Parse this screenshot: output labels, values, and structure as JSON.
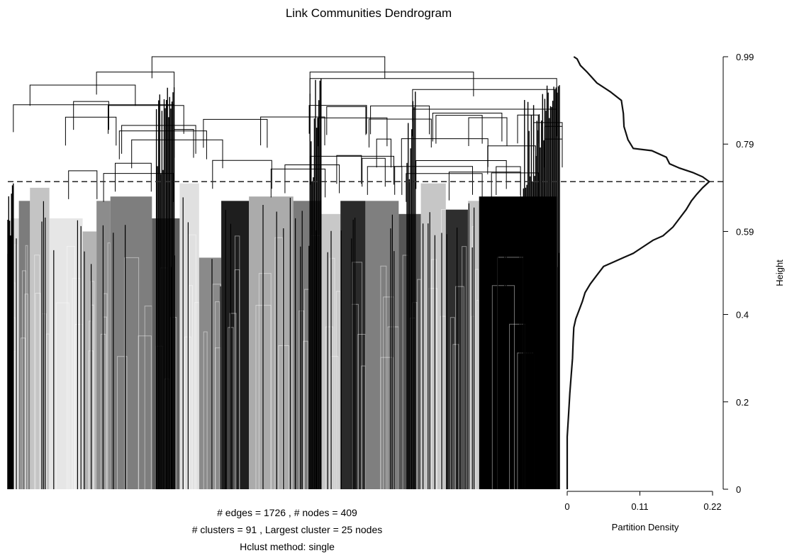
{
  "chart_data": [
    {
      "type": "dendrogram",
      "title": "Link Communities Dendrogram",
      "ylim": [
        0,
        0.99
      ],
      "cut_height": 0.704,
      "summary": {
        "line1": "# edges =  1726 ,    # nodes =  409",
        "line2": "# clusters =  91 ,   Largest cluster =  25  nodes",
        "line3": "Hclust method:  single"
      },
      "main_merges": [
        {
          "height": 0.99,
          "from": 0.26,
          "to": 0.68
        },
        {
          "height": 0.955,
          "from": 0.16,
          "to": 0.3
        },
        {
          "height": 0.955,
          "from": 0.545,
          "to": 0.84
        },
        {
          "height": 0.925,
          "from": 0.04,
          "to": 0.23
        },
        {
          "height": 0.94,
          "from": 0.545,
          "to": 0.99
        },
        {
          "height": 0.915,
          "from": 0.73,
          "to": 0.99
        },
        {
          "height": 0.88,
          "from": 0.01,
          "to": 0.3
        },
        {
          "height": 0.87,
          "from": 0.73,
          "to": 0.99
        }
      ],
      "cluster_blocks": [
        {
          "from": 0.005,
          "to": 0.02,
          "top": 0.62,
          "gray": "#dcdcdc"
        },
        {
          "from": 0.02,
          "to": 0.04,
          "top": 0.66,
          "gray": "#7c7c7c"
        },
        {
          "from": 0.04,
          "to": 0.075,
          "top": 0.69,
          "gray": "#c4c4c4"
        },
        {
          "from": 0.075,
          "to": 0.135,
          "top": 0.62,
          "gray": "#e6e6e6"
        },
        {
          "from": 0.135,
          "to": 0.16,
          "top": 0.59,
          "gray": "#b4b4b4"
        },
        {
          "from": 0.16,
          "to": 0.185,
          "top": 0.66,
          "gray": "#8c8c8c"
        },
        {
          "from": 0.185,
          "to": 0.26,
          "top": 0.67,
          "gray": "#7e7e7e"
        },
        {
          "from": 0.26,
          "to": 0.31,
          "top": 0.62,
          "gray": "#5e5e5e"
        },
        {
          "from": 0.31,
          "to": 0.345,
          "top": 0.7,
          "gray": "#e0e0e0"
        },
        {
          "from": 0.345,
          "to": 0.385,
          "top": 0.53,
          "gray": "#8a8a8a"
        },
        {
          "from": 0.385,
          "to": 0.435,
          "top": 0.66,
          "gray": "#1e1e1e"
        },
        {
          "from": 0.435,
          "to": 0.515,
          "top": 0.67,
          "gray": "#ababab"
        },
        {
          "from": 0.515,
          "to": 0.565,
          "top": 0.66,
          "gray": "#7a7a7a"
        },
        {
          "from": 0.565,
          "to": 0.6,
          "top": 0.63,
          "gray": "#c8c8c8"
        },
        {
          "from": 0.6,
          "to": 0.645,
          "top": 0.66,
          "gray": "#2a2a2a"
        },
        {
          "from": 0.645,
          "to": 0.705,
          "top": 0.66,
          "gray": "#7f7f7f"
        },
        {
          "from": 0.705,
          "to": 0.745,
          "top": 0.63,
          "gray": "#555555"
        },
        {
          "from": 0.745,
          "to": 0.79,
          "top": 0.7,
          "gray": "#c6c6c6"
        },
        {
          "from": 0.79,
          "to": 0.83,
          "top": 0.64,
          "gray": "#2e2e2e"
        },
        {
          "from": 0.83,
          "to": 0.85,
          "top": 0.66,
          "gray": "#c2c2c2"
        },
        {
          "from": 0.85,
          "to": 0.99,
          "top": 0.67,
          "gray": "#000000"
        }
      ],
      "dense_black_regions": [
        {
          "from": 0.268,
          "to": 0.3,
          "top": 0.92
        },
        {
          "from": 0.545,
          "to": 0.565,
          "top": 0.94
        },
        {
          "from": 0.72,
          "to": 0.735,
          "top": 0.91
        },
        {
          "from": 0.93,
          "to": 0.995,
          "top": 0.925
        },
        {
          "from": 0.0,
          "to": 0.01,
          "top": 0.7
        }
      ]
    },
    {
      "type": "line",
      "xlabel": "Partition Density",
      "ylabel": "Height",
      "xlim": [
        0,
        0.22
      ],
      "ylim": [
        0,
        0.99
      ],
      "x_ticks": [
        "0",
        "0.11",
        "0.22"
      ],
      "y_ticks": [
        {
          "value": 0,
          "label": "0"
        },
        {
          "value": 0.2,
          "label": "0.2"
        },
        {
          "value": 0.4,
          "label": "0.4"
        },
        {
          "value": 0.59,
          "label": "0.59"
        },
        {
          "value": 0.79,
          "label": "0.79"
        },
        {
          "value": 0.99,
          "label": "0.99"
        }
      ],
      "cut_height": 0.704,
      "series": [
        {
          "points": [
            [
              0.0,
              0.0
            ],
            [
              0.0,
              0.05
            ],
            [
              0.0,
              0.12
            ],
            [
              0.002,
              0.17
            ],
            [
              0.004,
              0.22
            ],
            [
              0.006,
              0.26
            ],
            [
              0.008,
              0.3
            ],
            [
              0.009,
              0.34
            ],
            [
              0.01,
              0.37
            ],
            [
              0.013,
              0.39
            ],
            [
              0.018,
              0.41
            ],
            [
              0.023,
              0.43
            ],
            [
              0.027,
              0.45
            ],
            [
              0.035,
              0.47
            ],
            [
              0.045,
              0.49
            ],
            [
              0.055,
              0.51
            ],
            [
              0.07,
              0.52
            ],
            [
              0.085,
              0.53
            ],
            [
              0.1,
              0.54
            ],
            [
              0.115,
              0.555
            ],
            [
              0.13,
              0.57
            ],
            [
              0.145,
              0.58
            ],
            [
              0.16,
              0.6
            ],
            [
              0.17,
              0.62
            ],
            [
              0.18,
              0.64
            ],
            [
              0.188,
              0.66
            ],
            [
              0.196,
              0.675
            ],
            [
              0.205,
              0.69
            ],
            [
              0.215,
              0.704
            ],
            [
              0.205,
              0.715
            ],
            [
              0.19,
              0.725
            ],
            [
              0.17,
              0.735
            ],
            [
              0.155,
              0.745
            ],
            [
              0.15,
              0.76
            ],
            [
              0.128,
              0.775
            ],
            [
              0.1,
              0.78
            ],
            [
              0.092,
              0.8
            ],
            [
              0.086,
              0.83
            ],
            [
              0.085,
              0.86
            ],
            [
              0.082,
              0.89
            ],
            [
              0.065,
              0.91
            ],
            [
              0.045,
              0.93
            ],
            [
              0.03,
              0.955
            ],
            [
              0.02,
              0.97
            ],
            [
              0.015,
              0.985
            ],
            [
              0.01,
              0.99
            ]
          ]
        }
      ]
    }
  ]
}
